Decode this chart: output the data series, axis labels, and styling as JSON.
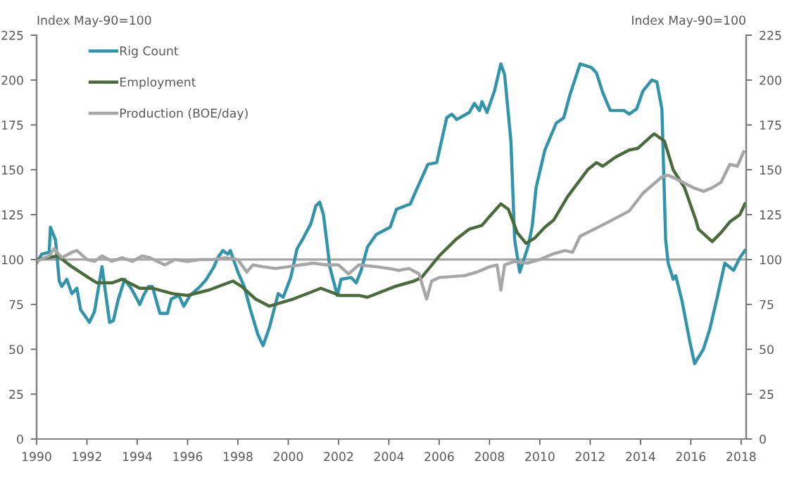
{
  "chart_data": {
    "type": "line",
    "ylabel": "Index May-90=100",
    "y2label": "Index May-90=100",
    "xlim": [
      1990,
      2018.2
    ],
    "xticks": [
      1990,
      1992,
      1994,
      1996,
      1998,
      2000,
      2002,
      2004,
      2006,
      2008,
      2010,
      2012,
      2014,
      2016,
      2018
    ],
    "ylim": [
      0,
      225
    ],
    "yticks": [
      0,
      25,
      50,
      75,
      100,
      125,
      150,
      175,
      200,
      225
    ],
    "y2lim": [
      0,
      225
    ],
    "y2ticks": [
      0,
      25,
      50,
      75,
      100,
      125,
      150,
      175,
      200,
      225
    ],
    "grid": false,
    "legend": "top left",
    "marker": "none",
    "line_style": "solid",
    "ref_lines": [
      {
        "axis": "y",
        "value": 100,
        "label": null,
        "color": "#a6a6a6"
      }
    ],
    "series": [
      {
        "name": "Rig Count",
        "color": "#3194ab",
        "x": [
          1990.0,
          1990.2,
          1990.5,
          1990.55,
          1990.75,
          1990.9,
          1991.0,
          1991.2,
          1991.4,
          1991.6,
          1991.75,
          1992.0,
          1992.1,
          1992.3,
          1992.6,
          1992.9,
          1993.05,
          1993.25,
          1993.5,
          1993.8,
          1994.1,
          1994.25,
          1994.45,
          1994.6,
          1994.9,
          1995.2,
          1995.35,
          1995.65,
          1995.85,
          1996.1,
          1996.5,
          1996.75,
          1997.05,
          1997.2,
          1997.4,
          1997.6,
          1997.7,
          1998.0,
          1998.25,
          1998.5,
          1998.8,
          1999.0,
          1999.25,
          1999.6,
          1999.8,
          2000.1,
          2000.35,
          2000.6,
          2000.9,
          2001.1,
          2001.25,
          2001.4,
          2001.55,
          2001.65,
          2001.95,
          2002.1,
          2002.5,
          2002.7,
          2002.9,
          2003.15,
          2003.5,
          2004.05,
          2004.3,
          2004.85,
          2005.1,
          2005.55,
          2005.9,
          2006.3,
          2006.5,
          2006.7,
          2007.2,
          2007.4,
          2007.6,
          2007.7,
          2007.9,
          2008.2,
          2008.45,
          2008.6,
          2008.85,
          2009.0,
          2009.2,
          2009.55,
          2009.7,
          2009.85,
          2010.2,
          2010.65,
          2010.95,
          2011.2,
          2011.6,
          2012.05,
          2012.25,
          2012.5,
          2012.8,
          2013.35,
          2013.55,
          2013.85,
          2014.1,
          2014.45,
          2014.65,
          2014.85,
          2015.0,
          2015.1,
          2015.3,
          2015.4,
          2015.65,
          2015.95,
          2016.15,
          2016.5,
          2016.75,
          2017.05,
          2017.35,
          2017.7,
          2017.95,
          2018.15
        ],
        "values": [
          98,
          103,
          104,
          118,
          111,
          88,
          85,
          89,
          81,
          84,
          72,
          67,
          65,
          71,
          96,
          65,
          66,
          78,
          89,
          83,
          75,
          80,
          85,
          85,
          70,
          70,
          78,
          80,
          74,
          80,
          85,
          89,
          96,
          101,
          105,
          103,
          105,
          93,
          85,
          72,
          58,
          52,
          62,
          81,
          79,
          90,
          106,
          112,
          120,
          130,
          132,
          125,
          108,
          96,
          80,
          89,
          90,
          87,
          94,
          107,
          114,
          118,
          128,
          131,
          139,
          153,
          154,
          179,
          181,
          178,
          182,
          187,
          183,
          188,
          182,
          194,
          209,
          203,
          166,
          111,
          93,
          108,
          119,
          140,
          161,
          176,
          179,
          192,
          209,
          207,
          204,
          193,
          183,
          183,
          181,
          184,
          194,
          200,
          199,
          184,
          111,
          98,
          89,
          91,
          77,
          55,
          42,
          50,
          61,
          79,
          98,
          94,
          101,
          105
        ]
      },
      {
        "name": "Employment",
        "color": "#4a6b3c",
        "x": [
          1990.0,
          1990.85,
          1991.3,
          1992.05,
          1992.4,
          1993.0,
          1993.4,
          1994.1,
          1994.6,
          1995.4,
          1996.0,
          1996.85,
          1997.8,
          1998.15,
          1998.7,
          1999.25,
          2000.2,
          2001.3,
          2002.05,
          2002.8,
          2003.15,
          2004.25,
          2005.0,
          2005.3,
          2006.0,
          2006.65,
          2007.2,
          2007.7,
          2008.0,
          2008.45,
          2008.75,
          2009.1,
          2009.45,
          2009.8,
          2010.2,
          2010.55,
          2011.1,
          2011.9,
          2012.25,
          2012.5,
          2013.0,
          2013.55,
          2013.9,
          2014.45,
          2014.55,
          2014.95,
          2015.3,
          2015.75,
          2016.2,
          2016.3,
          2016.85,
          2017.2,
          2017.55,
          2017.95,
          2018.15
        ],
        "values": [
          100,
          102,
          97,
          90,
          87,
          87,
          89,
          84,
          84,
          81,
          80,
          83,
          88,
          85,
          78,
          74,
          78,
          84,
          80,
          80,
          79,
          85,
          88,
          90,
          102,
          111,
          117,
          119,
          124,
          131,
          128,
          115,
          109,
          112,
          118,
          122,
          135,
          150,
          154,
          152,
          157,
          161,
          162,
          169,
          170,
          166,
          150,
          140,
          122,
          117,
          110,
          115,
          121,
          125,
          131
        ]
      },
      {
        "name": "Production (BOE/day)",
        "color": "#a6a6a6",
        "x": [
          1990.0,
          1990.5,
          1990.7,
          1991.0,
          1991.4,
          1991.6,
          1992.0,
          1992.3,
          1992.6,
          1993.0,
          1993.4,
          1993.8,
          1994.2,
          1994.5,
          1994.8,
          1995.1,
          1995.5,
          1996.0,
          1996.5,
          1997.0,
          1997.5,
          1998.0,
          1998.35,
          1998.6,
          1999.0,
          1999.5,
          2000.0,
          2000.5,
          2001.0,
          2001.5,
          2002.0,
          2002.4,
          2002.8,
          2003.5,
          2004.0,
          2004.4,
          2004.8,
          2005.2,
          2005.5,
          2005.7,
          2006.0,
          2007.0,
          2007.5,
          2008.0,
          2008.3,
          2008.45,
          2008.6,
          2009.0,
          2009.5,
          2010.0,
          2010.5,
          2011.0,
          2011.3,
          2011.6,
          2012.6,
          2013.55,
          2014.1,
          2014.85,
          2015.1,
          2015.4,
          2016.1,
          2016.5,
          2016.85,
          2017.2,
          2017.55,
          2017.85,
          2018.1
        ],
        "values": [
          99,
          102,
          106,
          101,
          104,
          105,
          100,
          99,
          102,
          99,
          101,
          99,
          102,
          101,
          99,
          97,
          100,
          99,
          100,
          100,
          101,
          100,
          93,
          97,
          96,
          95,
          96,
          97,
          98,
          97,
          97,
          92,
          97,
          96,
          95,
          94,
          95,
          92,
          78,
          88,
          90,
          91,
          93,
          96,
          97,
          83,
          97,
          99,
          98,
          100,
          103,
          105,
          104,
          113,
          120,
          127,
          137,
          146,
          147,
          145,
          140,
          138,
          140,
          143,
          153,
          152,
          160
        ]
      }
    ]
  }
}
